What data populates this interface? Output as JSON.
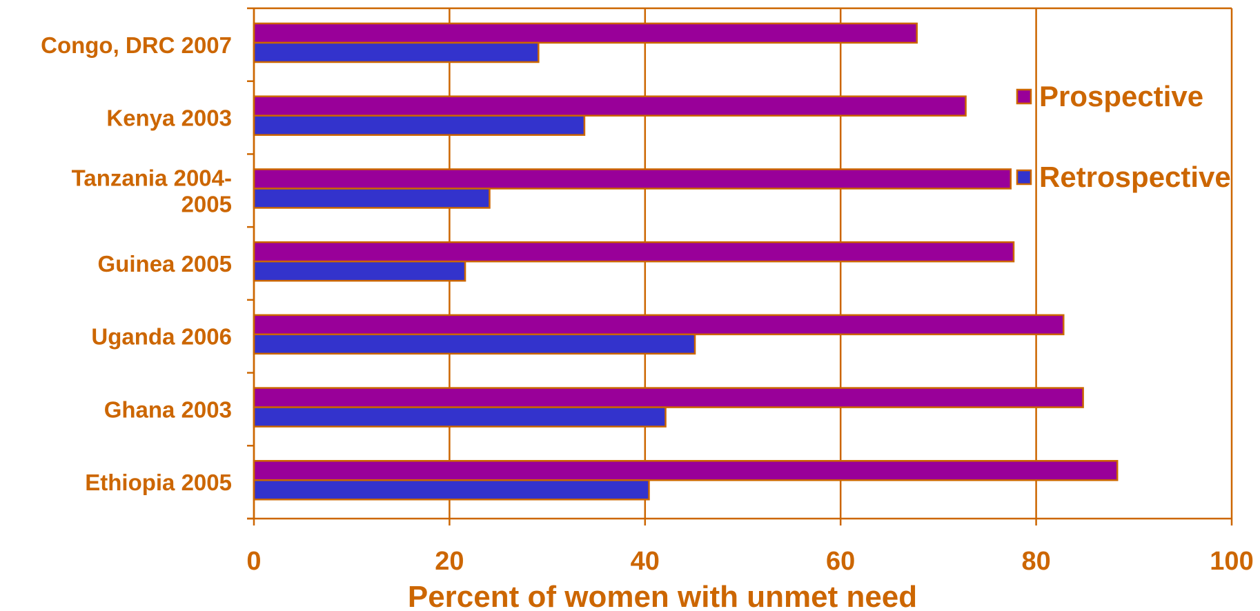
{
  "chart_data": {
    "type": "bar",
    "orientation": "horizontal",
    "categories": [
      "Congo, DRC 2007",
      "Kenya 2003",
      "Tanzania 2004-2005",
      "Guinea 2005",
      "Uganda 2006",
      "Ghana 2003",
      "Ethiopia 2005"
    ],
    "category_lines": [
      [
        "Congo, DRC 2007"
      ],
      [
        "Kenya 2003"
      ],
      [
        "Tanzania 2004-",
        "2005"
      ],
      [
        "Guinea 2005"
      ],
      [
        "Uganda 2006"
      ],
      [
        "Ghana 2003"
      ],
      [
        "Ethiopia 2005"
      ]
    ],
    "series": [
      {
        "name": "Prospective",
        "color": "#990099",
        "values": [
          67.8,
          72.8,
          77.4,
          77.7,
          82.8,
          84.8,
          88.3
        ]
      },
      {
        "name": "Retrospective",
        "color": "#3333cc",
        "values": [
          29.1,
          33.8,
          24.1,
          21.6,
          45.1,
          42.1,
          40.4
        ]
      }
    ],
    "xlim": [
      0,
      100
    ],
    "xticks": [
      0,
      20,
      40,
      60,
      80,
      100
    ],
    "xlabel": "Percent of women with unmet need",
    "ylabel": "",
    "title": "",
    "grid": "vertical",
    "legend_position": "right",
    "text_color": "#cc6600",
    "axis_color": "#cc6600"
  }
}
